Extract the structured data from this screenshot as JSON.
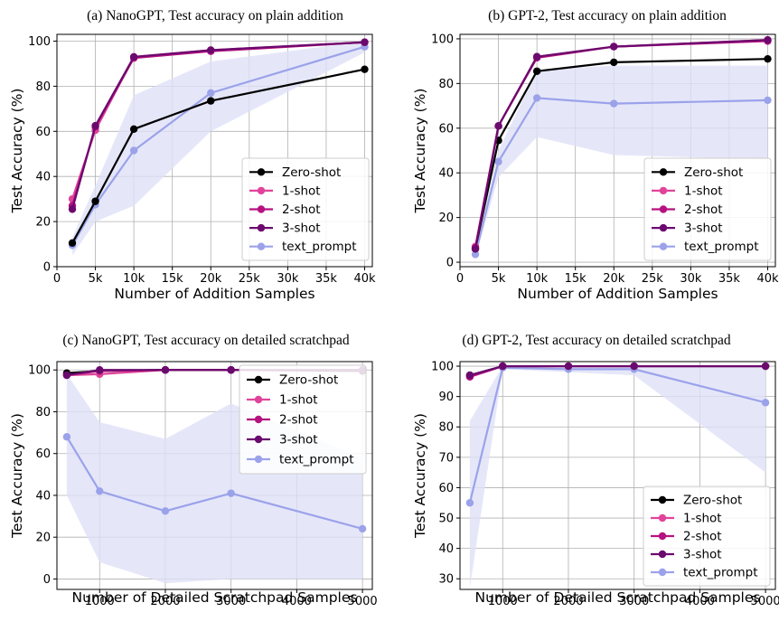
{
  "colors": {
    "Zero-shot": "#000000",
    "1-shot": "#e0449a",
    "2-shot": "#b5127f",
    "3-shot": "#6b0a6e",
    "text_prompt": "#9ba2ea",
    "band": "#dfe1f8"
  },
  "chart_data": [
    {
      "type": "line",
      "title": "(a) NanoGPT, Test accuracy on plain addition",
      "xlabel": "Number of Addition Samples",
      "ylabel": "Test Accuracy (%)",
      "xlim": [
        0,
        41000
      ],
      "ylim": [
        0,
        103
      ],
      "xticks": [
        0,
        5000,
        10000,
        15000,
        20000,
        25000,
        30000,
        35000,
        40000
      ],
      "xtick_labels": [
        "0",
        "5k",
        "10k",
        "15k",
        "20k",
        "25k",
        "30k",
        "35k",
        "40k"
      ],
      "yticks": [
        0,
        20,
        40,
        60,
        80,
        100
      ],
      "ytick_labels": [
        "0",
        "20",
        "40",
        "60",
        "80",
        "100"
      ],
      "grid": true,
      "legend_position": "lower-right",
      "x": [
        2000,
        5000,
        10000,
        20000,
        40000
      ],
      "series": [
        {
          "name": "Zero-shot",
          "values": [
            10.5,
            29,
            61,
            73.5,
            87.5
          ]
        },
        {
          "name": "1-shot",
          "values": [
            30,
            60.5,
            93,
            96,
            99.5
          ]
        },
        {
          "name": "2-shot",
          "values": [
            27,
            62,
            92.5,
            95.5,
            99.5
          ]
        },
        {
          "name": "3-shot",
          "values": [
            25.5,
            62.5,
            93,
            96,
            99.5
          ]
        },
        {
          "name": "text_prompt",
          "values": [
            9.5,
            27.5,
            51.5,
            77,
            97.5
          ],
          "band_low": [
            5,
            20,
            27,
            60,
            95
          ],
          "band_high": [
            13,
            36,
            76,
            91,
            100
          ]
        }
      ]
    },
    {
      "type": "line",
      "title": "(b) GPT-2, Test accuracy on plain addition",
      "xlabel": "Number of Addition Samples",
      "ylabel": "Test Accuracy (%)",
      "xlim": [
        0,
        41000
      ],
      "ylim": [
        -2,
        102
      ],
      "xticks": [
        0,
        5000,
        10000,
        15000,
        20000,
        25000,
        30000,
        35000,
        40000
      ],
      "xtick_labels": [
        "0",
        "5k",
        "10k",
        "15k",
        "20k",
        "25k",
        "30k",
        "35k",
        "40k"
      ],
      "yticks": [
        0,
        20,
        40,
        60,
        80,
        100
      ],
      "ytick_labels": [
        "0",
        "20",
        "40",
        "60",
        "80",
        "100"
      ],
      "grid": true,
      "legend_position": "lower-right",
      "x": [
        2000,
        5000,
        10000,
        20000,
        40000
      ],
      "series": [
        {
          "name": "Zero-shot",
          "values": [
            6,
            54.5,
            85.5,
            89.5,
            91
          ]
        },
        {
          "name": "1-shot",
          "values": [
            7,
            61,
            92,
            96.5,
            99.5
          ]
        },
        {
          "name": "2-shot",
          "values": [
            6.5,
            61,
            91.5,
            96.5,
            99
          ]
        },
        {
          "name": "3-shot",
          "values": [
            6,
            61,
            92,
            96.5,
            99.5
          ]
        },
        {
          "name": "text_prompt",
          "values": [
            3.5,
            45,
            73.5,
            71,
            72.5
          ],
          "band_low": [
            2,
            38,
            56,
            48,
            46
          ],
          "band_high": [
            6,
            50,
            86,
            88,
            88
          ]
        }
      ]
    },
    {
      "type": "line",
      "title": "(c) NanoGPT, Test accuracy on detailed scratchpad",
      "xlabel": "Number of Detailed Scratchpad Samples",
      "ylabel": "Test Accuracy (%)",
      "xlim": [
        350,
        5150
      ],
      "ylim": [
        -5,
        104
      ],
      "xticks": [
        1000,
        2000,
        3000,
        4000,
        5000
      ],
      "xtick_labels": [
        "1000",
        "2000",
        "3000",
        "4000",
        "5000"
      ],
      "yticks": [
        0,
        20,
        40,
        60,
        80,
        100
      ],
      "ytick_labels": [
        "0",
        "20",
        "40",
        "60",
        "80",
        "100"
      ],
      "grid": true,
      "legend_position": "upper-right",
      "x": [
        500,
        1000,
        2000,
        3000,
        5000
      ],
      "series": [
        {
          "name": "Zero-shot",
          "values": [
            98.5,
            99.5,
            100,
            100,
            99.5
          ]
        },
        {
          "name": "1-shot",
          "values": [
            97.5,
            98,
            100,
            100,
            100
          ]
        },
        {
          "name": "2-shot",
          "values": [
            97.5,
            99.5,
            100,
            100,
            100
          ]
        },
        {
          "name": "3-shot",
          "values": [
            97.5,
            100,
            100,
            100,
            100
          ]
        },
        {
          "name": "text_prompt",
          "values": [
            68,
            42,
            32.5,
            41,
            24
          ],
          "band_low": [
            40,
            8,
            -2,
            0,
            0
          ],
          "band_high": [
            98,
            75,
            67,
            84,
            58
          ]
        }
      ]
    },
    {
      "type": "line",
      "title": "(d) GPT-2, Test accuracy on detailed scratchpad",
      "xlabel": "Number of Detailed Scratchpad Samples",
      "ylabel": "Test Accuracy (%)",
      "xlim": [
        350,
        5150
      ],
      "ylim": [
        26.5,
        101.5
      ],
      "xticks": [
        1000,
        2000,
        3000,
        4000,
        5000
      ],
      "xtick_labels": [
        "1000",
        "2000",
        "3000",
        "4000",
        "5000"
      ],
      "yticks": [
        30,
        40,
        50,
        60,
        70,
        80,
        90,
        100
      ],
      "ytick_labels": [
        "30",
        "40",
        "50",
        "60",
        "70",
        "80",
        "90",
        "100"
      ],
      "grid": true,
      "legend_position": "lower-right",
      "x": [
        500,
        1000,
        2000,
        3000,
        5000
      ],
      "series": [
        {
          "name": "Zero-shot",
          "values": [
            97,
            100,
            100,
            100,
            100
          ]
        },
        {
          "name": "1-shot",
          "values": [
            96.5,
            100,
            100,
            100,
            100
          ]
        },
        {
          "name": "2-shot",
          "values": [
            96.5,
            100,
            100,
            100,
            100
          ]
        },
        {
          "name": "3-shot",
          "values": [
            97,
            100,
            100,
            100,
            100
          ]
        },
        {
          "name": "text_prompt",
          "values": [
            55,
            99.5,
            99,
            99,
            88
          ],
          "band_low": [
            27,
            99,
            98,
            97,
            65
          ],
          "band_high": [
            82,
            100,
            100,
            100,
            100
          ]
        }
      ]
    }
  ]
}
